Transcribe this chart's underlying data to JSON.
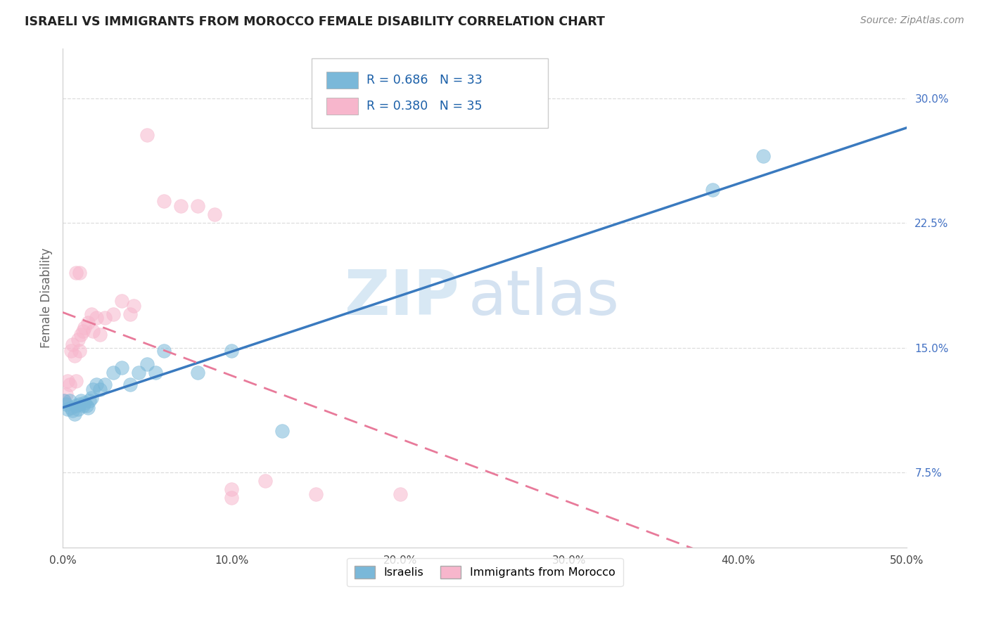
{
  "title": "ISRAELI VS IMMIGRANTS FROM MOROCCO FEMALE DISABILITY CORRELATION CHART",
  "source": "Source: ZipAtlas.com",
  "ylabel": "Female Disability",
  "xlim": [
    0.0,
    0.5
  ],
  "ylim": [
    0.03,
    0.33
  ],
  "yticks": [
    0.075,
    0.15,
    0.225,
    0.3
  ],
  "ytick_labels": [
    "7.5%",
    "15.0%",
    "22.5%",
    "30.0%"
  ],
  "xticks": [
    0.0,
    0.1,
    0.2,
    0.3,
    0.4,
    0.5
  ],
  "xtick_labels": [
    "0.0%",
    "10.0%",
    "20.0%",
    "30.0%",
    "40.0%",
    "50.0%"
  ],
  "legend_labels": [
    "Israelis",
    "Immigrants from Morocco"
  ],
  "israeli_color": "#7ab8d9",
  "morocco_color": "#f7b6cc",
  "israeli_line_color": "#3a7abf",
  "morocco_line_color": "#e87a9a",
  "israeli_R": 0.686,
  "israeli_N": 33,
  "morocco_R": 0.38,
  "morocco_N": 35,
  "background_color": "#ffffff",
  "watermark_zip": "ZIP",
  "watermark_atlas": "atlas",
  "grid_color": "#dddddd",
  "title_color": "#222222",
  "source_color": "#888888",
  "ytick_color": "#4472c4",
  "xtick_color": "#444444",
  "israeli_x": [
    0.001,
    0.002,
    0.003,
    0.004,
    0.005,
    0.006,
    0.007,
    0.008,
    0.009,
    0.01,
    0.011,
    0.012,
    0.013,
    0.014,
    0.015,
    0.016,
    0.017,
    0.018,
    0.02,
    0.022,
    0.025,
    0.03,
    0.035,
    0.04,
    0.045,
    0.05,
    0.055,
    0.06,
    0.08,
    0.1,
    0.13,
    0.385,
    0.415
  ],
  "israeli_y": [
    0.118,
    0.116,
    0.113,
    0.118,
    0.114,
    0.112,
    0.11,
    0.115,
    0.113,
    0.116,
    0.118,
    0.115,
    0.117,
    0.115,
    0.114,
    0.118,
    0.12,
    0.125,
    0.128,
    0.125,
    0.128,
    0.135,
    0.138,
    0.128,
    0.135,
    0.14,
    0.135,
    0.148,
    0.135,
    0.148,
    0.1,
    0.245,
    0.265
  ],
  "morocco_x": [
    0.001,
    0.002,
    0.003,
    0.004,
    0.005,
    0.006,
    0.007,
    0.008,
    0.009,
    0.01,
    0.011,
    0.012,
    0.013,
    0.015,
    0.017,
    0.018,
    0.02,
    0.022,
    0.025,
    0.03,
    0.035,
    0.04,
    0.042,
    0.05,
    0.06,
    0.07,
    0.08,
    0.09,
    0.1,
    0.1,
    0.12,
    0.15,
    0.2,
    0.008,
    0.01
  ],
  "morocco_y": [
    0.118,
    0.122,
    0.13,
    0.128,
    0.148,
    0.152,
    0.145,
    0.13,
    0.155,
    0.148,
    0.158,
    0.16,
    0.162,
    0.165,
    0.17,
    0.16,
    0.168,
    0.158,
    0.168,
    0.17,
    0.178,
    0.17,
    0.175,
    0.278,
    0.238,
    0.235,
    0.235,
    0.23,
    0.065,
    0.06,
    0.07,
    0.062,
    0.062,
    0.195,
    0.195
  ]
}
